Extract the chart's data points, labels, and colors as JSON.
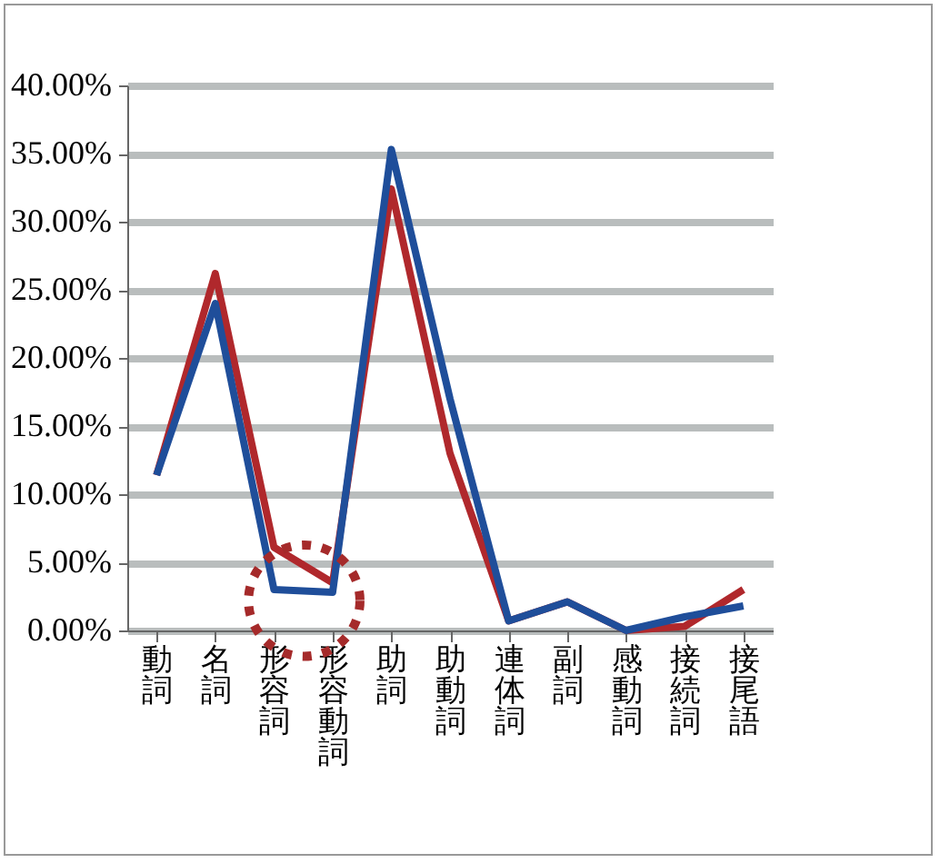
{
  "chart_data": {
    "type": "line",
    "categories": [
      "動詞",
      "名詞",
      "形容詞",
      "形容動詞",
      "助詞",
      "助動詞",
      "連体詞",
      "副詞",
      "感動詞",
      "接続詞",
      "接尾語"
    ],
    "series": [
      {
        "color": "#b0282c",
        "values": [
          11.4,
          26.2,
          6.1,
          3.5,
          32.4,
          13,
          0.7,
          2.1,
          0,
          0.3,
          3.0
        ]
      },
      {
        "color": "#1f4e9a",
        "values": [
          11.4,
          24.0,
          3.0,
          2.8,
          35.3,
          17,
          0.7,
          2.1,
          0,
          1.0,
          1.8
        ]
      }
    ],
    "ylim": [
      0,
      40
    ],
    "yticks": [
      {
        "value": 0,
        "label": "0.00%"
      },
      {
        "value": 5,
        "label": "5.00%"
      },
      {
        "value": 10,
        "label": "10.00%"
      },
      {
        "value": 15,
        "label": "15.00%"
      },
      {
        "value": 20,
        "label": "20.00%"
      },
      {
        "value": 25,
        "label": "25.00%"
      },
      {
        "value": 30,
        "label": "30.00%"
      },
      {
        "value": 35,
        "label": "35.00%"
      },
      {
        "value": 40,
        "label": "40.00%"
      }
    ],
    "grid": "y",
    "legend": false
  }
}
